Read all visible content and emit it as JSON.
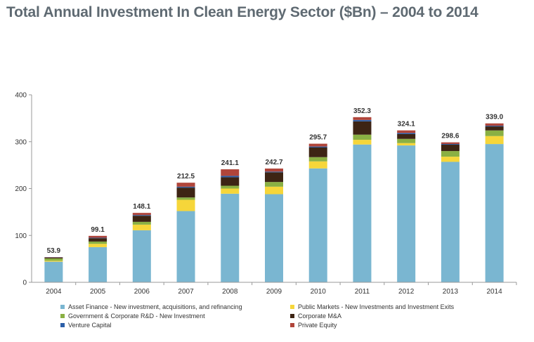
{
  "title": "Total Annual Investment In Clean Energy Sector ($Bn) – 2004 to 2014",
  "colors": {
    "asset_finance": "#7ab6d1",
    "public_markets": "#f6d63a",
    "gov_rd": "#8ab043",
    "corporate_ma": "#3d2414",
    "venture_capital": "#2c5fa8",
    "private_equity": "#b0453a"
  },
  "chart_data": {
    "type": "bar",
    "stacked": true,
    "title": "Total Annual Investment In Clean Energy Sector ($Bn) – 2004 to 2014",
    "categories": [
      "2004",
      "2005",
      "2006",
      "2007",
      "2008",
      "2009",
      "2010",
      "2011",
      "2012",
      "2013",
      "2014"
    ],
    "series": [
      {
        "name": "Asset Finance - New investment, acquisitions, and refinancing",
        "key": "asset_finance",
        "values": [
          44.0,
          75.0,
          111.0,
          152.0,
          189.0,
          188.0,
          243.0,
          294.0,
          292.0,
          257.0,
          295.0
        ]
      },
      {
        "name": "Public Markets - New Investments and Investment Exits",
        "key": "public_markets",
        "values": [
          2.0,
          7.0,
          12.0,
          24.0,
          11.0,
          16.0,
          15.0,
          10.0,
          5.0,
          11.0,
          17.0
        ]
      },
      {
        "name": "Government & Corporate R&D - New Investment",
        "key": "gov_rd",
        "values": [
          5.0,
          5.0,
          6.0,
          5.0,
          6.0,
          10.0,
          9.0,
          11.0,
          9.0,
          12.0,
          12.0
        ]
      },
      {
        "name": "Corporate M&A",
        "key": "corporate_ma",
        "values": [
          1.9,
          7.1,
          13.1,
          21.0,
          18.1,
          20.7,
          20.7,
          28.3,
          10.1,
          13.6,
          8.5
        ]
      },
      {
        "name": "Venture Capital",
        "key": "venture_capital",
        "values": [
          0.5,
          1.0,
          1.5,
          2.0,
          3.0,
          1.5,
          2.0,
          3.0,
          2.5,
          1.5,
          1.5
        ]
      },
      {
        "name": "Private Equity",
        "key": "private_equity",
        "values": [
          0.5,
          4.0,
          4.5,
          8.5,
          14.0,
          6.5,
          6.0,
          6.0,
          5.5,
          3.5,
          5.0
        ]
      }
    ],
    "totals": [
      "53.9",
      "99.1",
      "148.1",
      "212.5",
      "241.1",
      "242.7",
      "295.7",
      "352.3",
      "324.1",
      "298.6",
      "339.0"
    ],
    "xlabel": "",
    "ylabel": "",
    "ylim": [
      0,
      400
    ],
    "yticks": [
      "0",
      "100",
      "200",
      "300",
      "400"
    ],
    "grid": false,
    "legend_position": "bottom"
  },
  "legend": [
    {
      "label": "Asset Finance  - New investment, acquisitions, and refinancing",
      "key": "asset_finance"
    },
    {
      "label": "Public Markets  - New Investments and Investment Exits",
      "key": "public_markets"
    },
    {
      "label": "Government & Corporate R&D - New Investment",
      "key": "gov_rd"
    },
    {
      "label": "Corporate M&A",
      "key": "corporate_ma"
    },
    {
      "label": "Venture Capital",
      "key": "venture_capital"
    },
    {
      "label": "Private Equity",
      "key": "private_equity"
    }
  ]
}
